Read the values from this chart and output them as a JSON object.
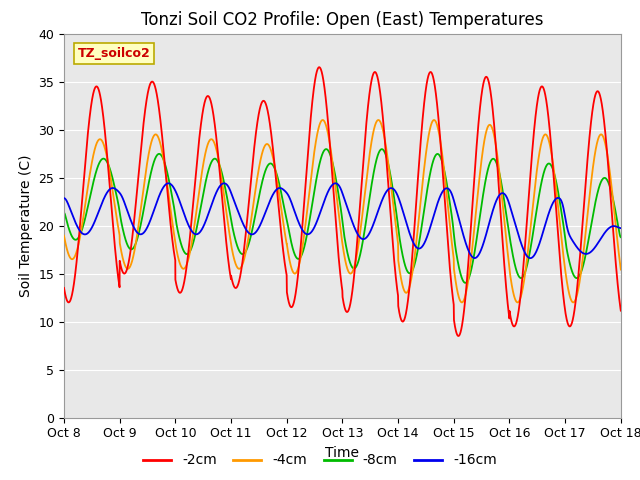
{
  "title": "Tonzi Soil CO2 Profile: Open (East) Temperatures",
  "xlabel": "Time",
  "ylabel": "Soil Temperature (C)",
  "ylim": [
    0,
    40
  ],
  "yticks": [
    0,
    5,
    10,
    15,
    20,
    25,
    30,
    35,
    40
  ],
  "xtick_labels": [
    "Oct 8",
    "Oct 9",
    "Oct 10",
    "Oct 11",
    "Oct 12",
    "Oct 13",
    "Oct 14",
    "Oct 15",
    "Oct 16",
    "Oct 17",
    "Oct 18"
  ],
  "legend_box_label": "TZ_soilco2",
  "line_colors": [
    "#ff0000",
    "#ff9900",
    "#00bb00",
    "#0000ee"
  ],
  "line_labels": [
    "-2cm",
    "-4cm",
    "-8cm",
    "-16cm"
  ],
  "background_color": "#e8e8e8",
  "figure_bg": "#ffffff",
  "title_fontsize": 12,
  "axis_label_fontsize": 10,
  "tick_fontsize": 9,
  "n_points": 4800,
  "grid_color": "#ffffff",
  "legend_fontsize": 10
}
